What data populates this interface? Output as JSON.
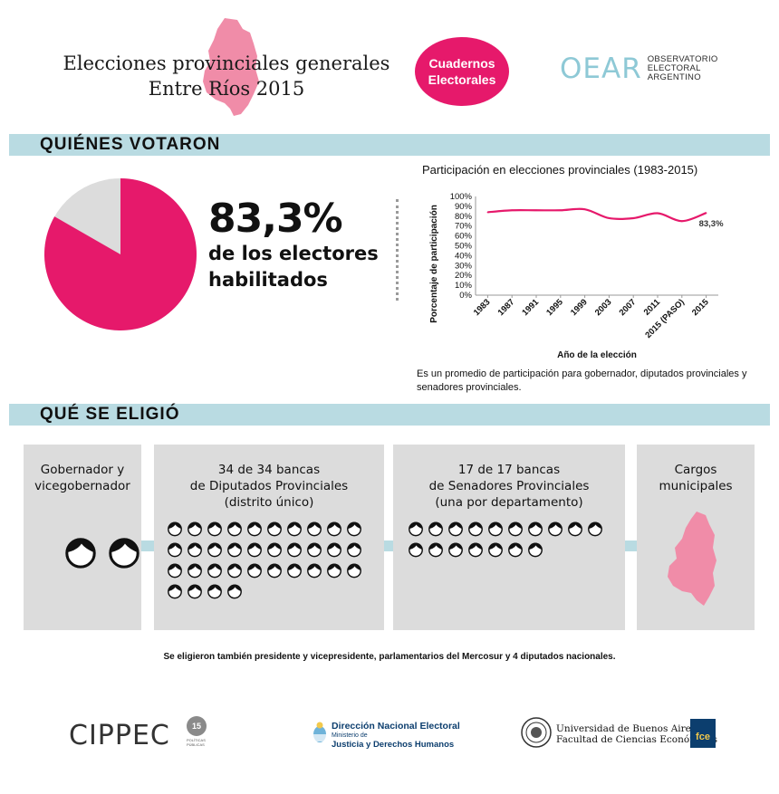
{
  "header": {
    "title_line1": "Elecciones provinciales generales",
    "title_line2": "Entre Ríos 2015",
    "badge_line1": "Cuadernos",
    "badge_line2": "Electorales",
    "oear_mark": "OEAR",
    "oear_line1": "OBSERVATORIO",
    "oear_line2": "ELECTORAL",
    "oear_line3": "ARGENTINO"
  },
  "colors": {
    "accent": "#e6196b",
    "map_pink": "#f08ca8",
    "section_bar": "#b9dbe2",
    "box_gray": "#dcdcdc",
    "pie_rest": "#dcdcdc"
  },
  "section1": {
    "title": "QUIÉNES VOTARON",
    "turnout_value": 83.3,
    "turnout_label": "83,3%",
    "turnout_sub1": "de los electores",
    "turnout_sub2": "habilitados"
  },
  "chart_data": {
    "type": "line",
    "title": "Participación en elecciones provinciales (1983-2015)",
    "xlabel": "Año de la elección",
    "ylabel": "Porcentaje de participación",
    "categories": [
      "1983",
      "1987",
      "1991",
      "1995",
      "1999",
      "2003",
      "2007",
      "2011",
      "2015 (PASO)",
      "2015"
    ],
    "series": [
      {
        "values": [
          84,
          86,
          86,
          86,
          87,
          78,
          78,
          83,
          75,
          83.3
        ]
      }
    ],
    "yticks": [
      "0%",
      "10%",
      "20%",
      "30%",
      "40%",
      "50%",
      "60%",
      "70%",
      "80%",
      "90%",
      "100%"
    ],
    "ylim": [
      0,
      100
    ],
    "end_label": "83,3%",
    "grid": false,
    "note": "Es un promedio de participación para gobernador, diputados provinciales y senadores provinciales."
  },
  "section2": {
    "title": "QUÉ SE ELIGIÓ",
    "box1_line1": "Gobernador y",
    "box1_line2": "vicegobernador",
    "box2_line1": "34 de 34 bancas",
    "box2_line2": "de Diputados Provinciales",
    "box2_line3": "(distrito único)",
    "box2_count": 34,
    "box3_line1": "17 de 17 bancas",
    "box3_line2": "de Senadores Provinciales",
    "box3_line3": "(una por departamento)",
    "box3_count": 17,
    "box4_line1": "Cargos",
    "box4_line2": "municipales",
    "also": "Se eligieron también presidente y vicepresidente, parlamentarios del Mercosur y 4 diputados nacionales."
  },
  "footer": {
    "cippec": "CIPPEC",
    "cippec_badge": "15",
    "cippec_small": "POLÍTICAS PÚBLICAS",
    "dne_line1": "Dirección Nacional Electoral",
    "dne_line2": "Ministerio de",
    "dne_line3": "Justicia y Derechos Humanos",
    "uba_line1": "Universidad de Buenos Aires",
    "uba_line2": "Facultad de Ciencias Económicas",
    "fce": "fce"
  }
}
